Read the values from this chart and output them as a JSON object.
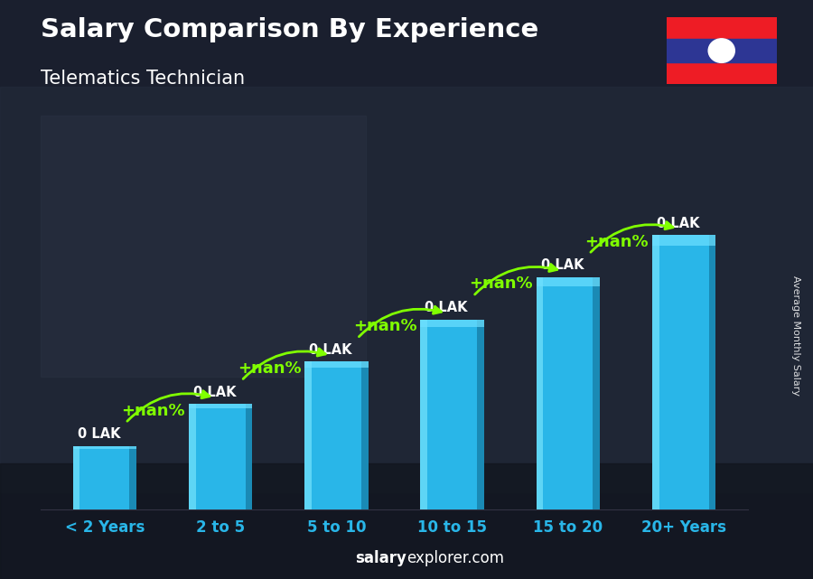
{
  "title": "Salary Comparison By Experience",
  "subtitle": "Telematics Technician",
  "categories": [
    "< 2 Years",
    "2 to 5",
    "5 to 10",
    "10 to 15",
    "15 to 20",
    "20+ Years"
  ],
  "values": [
    1.5,
    2.5,
    3.5,
    4.5,
    5.5,
    6.5
  ],
  "bar_face_color": "#29b6e8",
  "bar_left_color": "#5ed5f5",
  "bar_right_color": "#1a8ab5",
  "bar_labels": [
    "0 LAK",
    "0 LAK",
    "0 LAK",
    "0 LAK",
    "0 LAK",
    "0 LAK"
  ],
  "increase_labels": [
    "+nan%",
    "+nan%",
    "+nan%",
    "+nan%",
    "+nan%"
  ],
  "increase_color": "#80ff00",
  "title_color": "#ffffff",
  "subtitle_color": "#ffffff",
  "bar_label_color": "#ffffff",
  "footer_bold": "salary",
  "footer_normal": "explorer.com",
  "footer_salary": "Average Monthly Salary",
  "ylim": [
    0,
    8.5
  ],
  "bar_width": 0.55,
  "bg_color": "#1a1f2e"
}
